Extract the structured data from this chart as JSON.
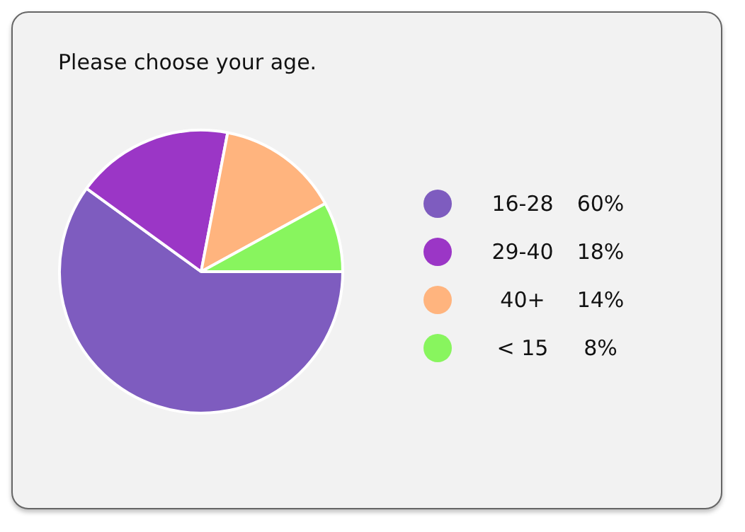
{
  "chart_data": {
    "type": "pie",
    "title": "Please choose your age.",
    "categories": [
      "16-28",
      "29-40",
      "40+",
      "< 15"
    ],
    "values": [
      60,
      18,
      14,
      8
    ],
    "colors": [
      "#7e5cbf",
      "#9b36c6",
      "#ffb47e",
      "#88f55e"
    ],
    "value_labels": [
      "60%",
      "18%",
      "14%",
      "8%"
    ],
    "legend": "right"
  }
}
